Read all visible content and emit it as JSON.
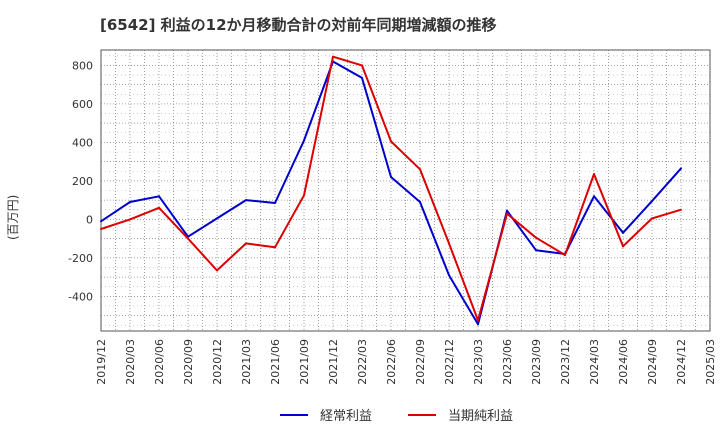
{
  "chart_data": {
    "type": "line",
    "title": "[6542]  利益の12か月移動合計の対前年同期増減額の推移",
    "ylabel": "(百万円)",
    "xlabel": "",
    "ylim": [
      -580,
      880
    ],
    "yticks": [
      800,
      600,
      400,
      200,
      0,
      -200,
      -400
    ],
    "grid": true,
    "legend_position": "bottom-center",
    "categories": [
      "2019/12",
      "2020/03",
      "2020/06",
      "2020/09",
      "2020/12",
      "2021/03",
      "2021/06",
      "2021/09",
      "2021/12",
      "2022/03",
      "2022/06",
      "2022/09",
      "2022/12",
      "2023/03",
      "2023/06",
      "2023/09",
      "2023/12",
      "2024/03",
      "2024/06",
      "2024/09",
      "2024/12",
      "2025/03"
    ],
    "series": [
      {
        "name": "経常利益",
        "color": "#0000cc",
        "values": [
          -10,
          90,
          120,
          -90,
          5,
          100,
          85,
          410,
          820,
          735,
          220,
          90,
          -290,
          -545,
          45,
          -160,
          -180,
          120,
          -70,
          95,
          265,
          null
        ]
      },
      {
        "name": "当期純利益",
        "color": "#dd0000",
        "values": [
          -50,
          0,
          60,
          -100,
          -265,
          -125,
          -145,
          125,
          845,
          800,
          405,
          260,
          -125,
          -525,
          30,
          -95,
          -185,
          235,
          -140,
          5,
          50,
          null
        ]
      }
    ]
  }
}
